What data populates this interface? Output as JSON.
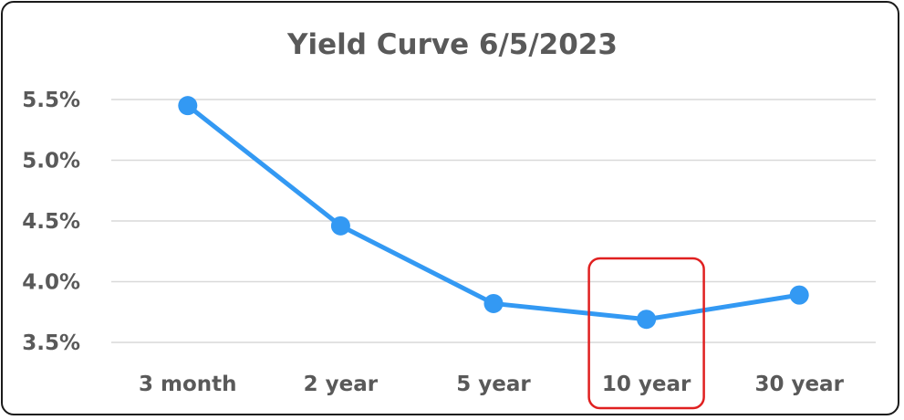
{
  "chart_data": {
    "type": "line",
    "title": "Yield Curve 6/5/2023",
    "categories": [
      "3 month",
      "2 year",
      "5 year",
      "10 year",
      "30 year"
    ],
    "series": [
      {
        "values": [
          5.45,
          4.46,
          3.82,
          3.69,
          3.89
        ]
      }
    ],
    "y_ticks": [
      "5.5%",
      "5.0%",
      "4.5%",
      "4.0%",
      "3.5%"
    ],
    "y_tick_values": [
      5.5,
      5.0,
      4.5,
      4.0,
      3.5
    ],
    "ylim": [
      3.5,
      5.5
    ],
    "grid": true,
    "highlighted_category": "10 year",
    "colors": {
      "line": "#3399f3",
      "grid": "#d9d9d9",
      "text": "#595959",
      "highlight": "#e02020",
      "border": "#1a1a1a"
    }
  }
}
